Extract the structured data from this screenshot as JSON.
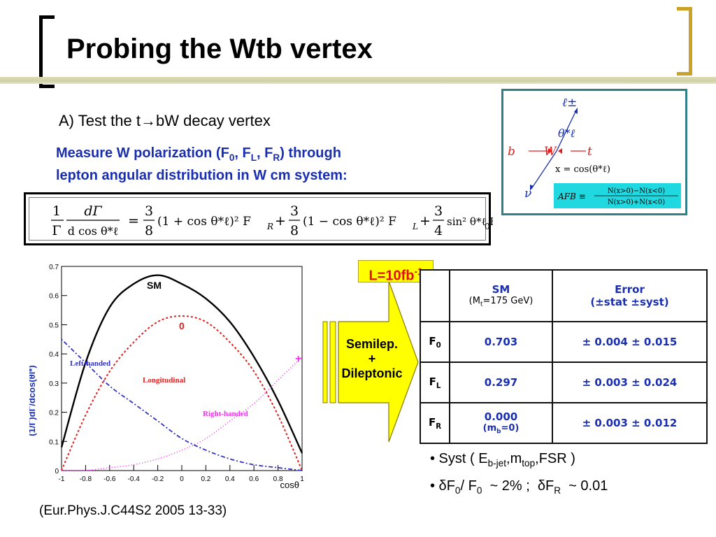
{
  "header": {
    "title": "Probing the Wtb vertex"
  },
  "section": {
    "heading": "A) Test the t→bW  decay vertex",
    "note_line1_prefix": "Measure W polarization (F",
    "note_line1_suffix": ") through",
    "note_line2": "lepton angular distribution in W cm system:"
  },
  "formula": {
    "lhs_num": "1",
    "lhs_den": "Γ",
    "d_num": "dΓ",
    "d_den": "d cos θ*ℓ",
    "frac1_num": "3",
    "frac1_den": "8",
    "term1": "(1 + cos θ*ℓ)² F",
    "frac2_num": "3",
    "frac2_den": "8",
    "term2": "(1 − cos θ*ℓ)² F",
    "frac3_num": "3",
    "frac3_den": "4",
    "term3": "sin² θ*ℓ F"
  },
  "inset": {
    "lepton": "ℓ±",
    "theta": "θ*ℓ",
    "b": "b",
    "W": "W",
    "t": "t",
    "nu": "ν",
    "x_def": "x = cos(θ*ℓ)",
    "afb_lhs": "AFB ≡",
    "afb_num": "N(x>0)−N(x<0)",
    "afb_den": "N(x>0)+N(x<0)",
    "box_color": "#2f7f86",
    "afb_color": "#20d8e0"
  },
  "plot": {
    "ylabel": "(1/Γ)dΓ/dcos(θl*)",
    "xlabel": "cosθ",
    "sm_label": "SM",
    "zero_label": "0",
    "plus_label": "+",
    "left_label": "Left-handed",
    "long_label": "Longitudinal",
    "right_label": "Right-handed"
  },
  "chart_data": {
    "type": "line",
    "xlabel": "cosθ",
    "ylabel": "(1/Γ)dΓ/dcos(θl*)",
    "xlim": [
      -1,
      1
    ],
    "ylim": [
      0,
      0.7
    ],
    "xticks": [
      "-1",
      "-0.8",
      "-0.6",
      "-0.4",
      "-0.2",
      "0",
      "0.2",
      "0.4",
      "0.6",
      "0.8",
      "1"
    ],
    "yticks": [
      "0",
      "0.1",
      "0.2",
      "0.3",
      "0.4",
      "0.5",
      "0.6",
      "0.7"
    ],
    "x": [
      -1,
      -0.8,
      -0.6,
      -0.4,
      -0.2,
      0,
      0.2,
      0.4,
      0.6,
      0.8,
      1
    ],
    "series": [
      {
        "name": "SM",
        "values": [
          0.08,
          0.37,
          0.56,
          0.64,
          0.67,
          0.64,
          0.59,
          0.51,
          0.39,
          0.24,
          0.06
        ],
        "color": "#000000"
      },
      {
        "name": "0",
        "values": [
          0.0,
          0.19,
          0.34,
          0.44,
          0.51,
          0.53,
          0.51,
          0.44,
          0.34,
          0.19,
          0.0
        ],
        "color": "#e02020"
      },
      {
        "name": "Left-handed",
        "values": [
          0.45,
          0.37,
          0.29,
          0.23,
          0.17,
          0.11,
          0.07,
          0.04,
          0.02,
          0.01,
          0.0
        ],
        "color": "#3030c0"
      },
      {
        "name": "Right-handed",
        "values": [
          0.0,
          0.0,
          0.01,
          0.02,
          0.04,
          0.07,
          0.11,
          0.17,
          0.23,
          0.31,
          0.39
        ],
        "color": "#f030f0"
      }
    ]
  },
  "citation": "(Eur.Phys.J.C44S2 2005 13-33)",
  "luminosity": {
    "prefix": "L=10fb",
    "exp": "-1"
  },
  "arrow": {
    "line1": "Semilep.",
    "line2": "+",
    "line3": "Dileptonic"
  },
  "table": {
    "h_sm": "SM",
    "h_sm_sub": "(Mt=175 GeV)",
    "h_err1": "Error",
    "h_err2": "(±stat ±syst)",
    "rows": [
      {
        "label": "F0",
        "sm": "0.703",
        "err": "± 0.004 ± 0.015"
      },
      {
        "label": "FL",
        "sm": "0.297",
        "err": "± 0.003 ± 0.024"
      },
      {
        "label": "FR",
        "sm": "0.000",
        "sm_note": "(mb=0)",
        "err": "± 0.003 ± 0.012"
      }
    ]
  },
  "bullets": {
    "b1": "Syst ( Eb-jet,mtop,FSR )",
    "b2": "δF0/ F0  ~ 2% ;  δFR  ~ 0.01"
  }
}
